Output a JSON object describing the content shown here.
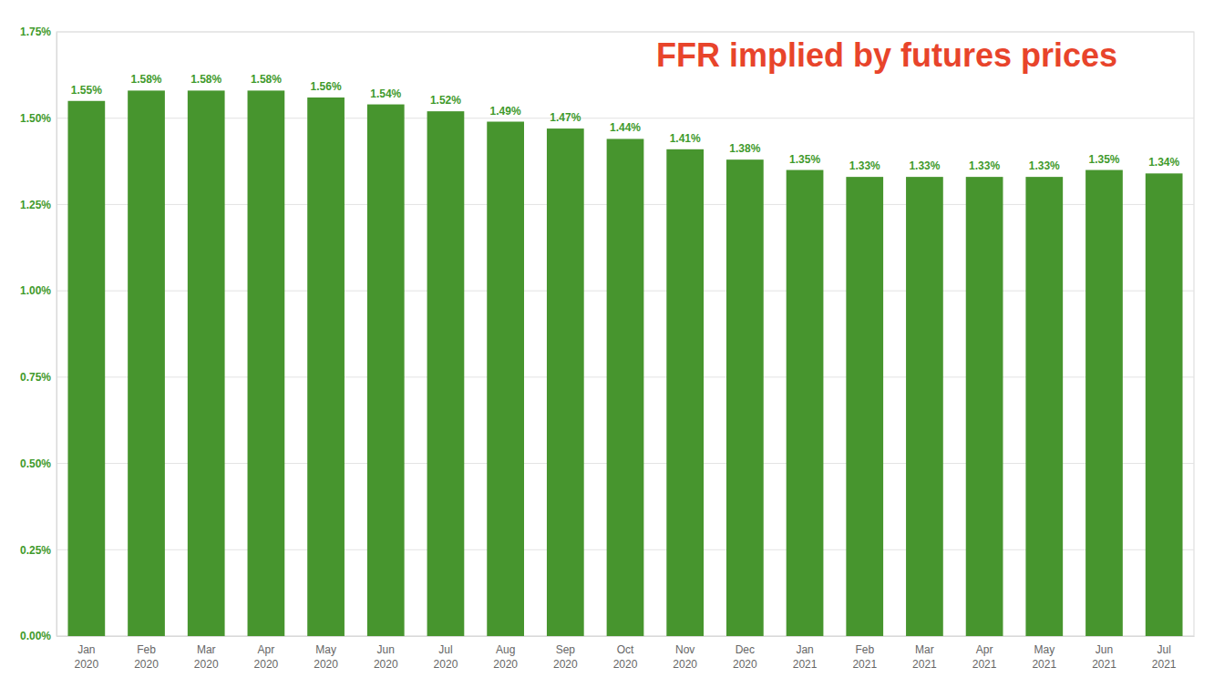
{
  "chart_data": {
    "type": "bar",
    "title": "FFR implied by futures prices",
    "categories": [
      "Jan 2020",
      "Feb 2020",
      "Mar 2020",
      "Apr 2020",
      "May 2020",
      "Jun 2020",
      "Jul 2020",
      "Aug 2020",
      "Sep 2020",
      "Oct 2020",
      "Nov 2020",
      "Dec 2020",
      "Jan 2021",
      "Feb 2021",
      "Mar 2021",
      "Apr 2021",
      "May 2021",
      "Jun 2021",
      "Jul 2021"
    ],
    "values": [
      1.55,
      1.58,
      1.58,
      1.58,
      1.56,
      1.54,
      1.52,
      1.49,
      1.47,
      1.44,
      1.41,
      1.38,
      1.35,
      1.33,
      1.33,
      1.33,
      1.33,
      1.35,
      1.34
    ],
    "value_labels": [
      "1.55%",
      "1.58%",
      "1.58%",
      "1.58%",
      "1.56%",
      "1.54%",
      "1.52%",
      "1.49%",
      "1.47%",
      "1.44%",
      "1.41%",
      "1.38%",
      "1.35%",
      "1.33%",
      "1.33%",
      "1.33%",
      "1.33%",
      "1.35%",
      "1.34%"
    ],
    "color": "#47952e",
    "ylim": [
      0,
      1.75
    ],
    "yticks": [
      {
        "value": 0,
        "label": "0.00%"
      },
      {
        "value": 0.25,
        "label": "0.25%"
      },
      {
        "value": 0.5,
        "label": "0.50%"
      },
      {
        "value": 0.75,
        "label": "0.75%"
      },
      {
        "value": 1,
        "label": "1.00%"
      },
      {
        "value": 1.25,
        "label": "1.25%"
      },
      {
        "value": 1.5,
        "label": "1.50%"
      },
      {
        "value": 1.75,
        "label": "1.75%"
      }
    ],
    "grid": true,
    "data_labels": true
  }
}
